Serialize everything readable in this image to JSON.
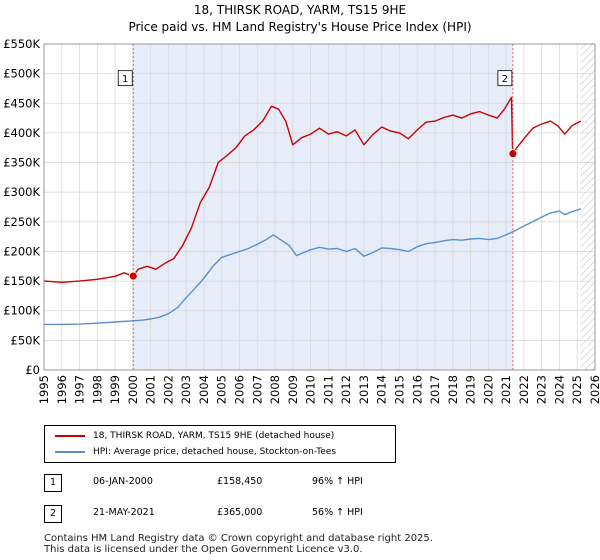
{
  "title_line1": "18, THIRSK ROAD, YARM, TS15 9HE",
  "title_line2": "Price paid vs. HM Land Registry's House Price Index (HPI)",
  "chart_data": {
    "type": "line",
    "title": "18, THIRSK ROAD, YARM, TS15 9HE — Price paid vs. HM Land Registry's House Price Index (HPI)",
    "xlabel": "",
    "ylabel": "",
    "xlim": [
      1995,
      2026
    ],
    "ylim": [
      0,
      550000
    ],
    "x_ticks": [
      1995,
      1996,
      1997,
      1998,
      1999,
      2000,
      2001,
      2002,
      2003,
      2004,
      2005,
      2006,
      2007,
      2008,
      2009,
      2010,
      2011,
      2012,
      2013,
      2014,
      2015,
      2016,
      2017,
      2018,
      2019,
      2020,
      2021,
      2022,
      2023,
      2024,
      2025,
      2026
    ],
    "y_ticks": [
      0,
      50000,
      100000,
      150000,
      200000,
      250000,
      300000,
      350000,
      400000,
      450000,
      500000,
      550000
    ],
    "y_tick_labels": [
      "£0",
      "£50K",
      "£100K",
      "£150K",
      "£200K",
      "£250K",
      "£300K",
      "£350K",
      "£400K",
      "£450K",
      "£500K",
      "£550K"
    ],
    "grid": true,
    "shaded_region": [
      2000.02,
      2021.38
    ],
    "hatched_from": 2025.2,
    "series": [
      {
        "name": "18, THIRSK ROAD, YARM, TS15 9HE (detached house)",
        "color": "#cc0000",
        "points": [
          [
            1995.0,
            150000
          ],
          [
            1996.0,
            148000
          ],
          [
            1997.0,
            150000
          ],
          [
            1998.0,
            153000
          ],
          [
            1999.0,
            158000
          ],
          [
            1999.5,
            164000
          ],
          [
            2000.02,
            158450
          ],
          [
            2000.3,
            170000
          ],
          [
            2000.8,
            175000
          ],
          [
            2001.3,
            170000
          ],
          [
            2001.8,
            180000
          ],
          [
            2002.3,
            188000
          ],
          [
            2002.8,
            210000
          ],
          [
            2003.3,
            240000
          ],
          [
            2003.8,
            283000
          ],
          [
            2004.3,
            308000
          ],
          [
            2004.8,
            350000
          ],
          [
            2005.3,
            362000
          ],
          [
            2005.8,
            375000
          ],
          [
            2006.3,
            395000
          ],
          [
            2006.8,
            405000
          ],
          [
            2007.3,
            420000
          ],
          [
            2007.8,
            445000
          ],
          [
            2008.2,
            440000
          ],
          [
            2008.6,
            420000
          ],
          [
            2009.0,
            380000
          ],
          [
            2009.5,
            392000
          ],
          [
            2010.0,
            398000
          ],
          [
            2010.5,
            408000
          ],
          [
            2011.0,
            398000
          ],
          [
            2011.5,
            402000
          ],
          [
            2012.0,
            395000
          ],
          [
            2012.5,
            405000
          ],
          [
            2013.0,
            380000
          ],
          [
            2013.5,
            397000
          ],
          [
            2014.0,
            410000
          ],
          [
            2014.5,
            403000
          ],
          [
            2015.0,
            400000
          ],
          [
            2015.5,
            390000
          ],
          [
            2016.0,
            405000
          ],
          [
            2016.5,
            418000
          ],
          [
            2017.0,
            420000
          ],
          [
            2017.5,
            426000
          ],
          [
            2018.0,
            430000
          ],
          [
            2018.5,
            425000
          ],
          [
            2019.0,
            432000
          ],
          [
            2019.5,
            436000
          ],
          [
            2020.0,
            430000
          ],
          [
            2020.5,
            425000
          ],
          [
            2020.9,
            440000
          ],
          [
            2021.3,
            460000
          ],
          [
            2021.33,
            418000
          ],
          [
            2021.36,
            378000
          ],
          [
            2021.38,
            365000
          ],
          [
            2021.6,
            375000
          ],
          [
            2022.0,
            390000
          ],
          [
            2022.5,
            408000
          ],
          [
            2023.0,
            415000
          ],
          [
            2023.5,
            420000
          ],
          [
            2023.9,
            412000
          ],
          [
            2024.3,
            398000
          ],
          [
            2024.7,
            412000
          ],
          [
            2025.2,
            420000
          ]
        ]
      },
      {
        "name": "HPI: Average price, detached house, Stockton-on-Tees",
        "color": "#5b8fc9",
        "points": [
          [
            1995.0,
            77000
          ],
          [
            1996.0,
            77000
          ],
          [
            1997.0,
            77500
          ],
          [
            1998.0,
            79000
          ],
          [
            1999.0,
            81000
          ],
          [
            2000.0,
            83000
          ],
          [
            2000.5,
            84000
          ],
          [
            2001.0,
            86000
          ],
          [
            2001.5,
            89000
          ],
          [
            2002.0,
            95000
          ],
          [
            2002.5,
            105000
          ],
          [
            2003.0,
            122000
          ],
          [
            2003.5,
            138000
          ],
          [
            2004.0,
            155000
          ],
          [
            2004.5,
            175000
          ],
          [
            2005.0,
            190000
          ],
          [
            2005.5,
            195000
          ],
          [
            2006.0,
            200000
          ],
          [
            2006.5,
            205000
          ],
          [
            2007.0,
            212000
          ],
          [
            2007.5,
            220000
          ],
          [
            2007.9,
            228000
          ],
          [
            2008.3,
            220000
          ],
          [
            2008.8,
            210000
          ],
          [
            2009.2,
            193000
          ],
          [
            2009.6,
            198000
          ],
          [
            2010.0,
            203000
          ],
          [
            2010.5,
            207000
          ],
          [
            2011.0,
            204000
          ],
          [
            2011.5,
            205000
          ],
          [
            2012.0,
            200000
          ],
          [
            2012.5,
            205000
          ],
          [
            2013.0,
            192000
          ],
          [
            2013.5,
            198000
          ],
          [
            2014.0,
            206000
          ],
          [
            2014.5,
            205000
          ],
          [
            2015.0,
            203000
          ],
          [
            2015.5,
            200000
          ],
          [
            2016.0,
            208000
          ],
          [
            2016.5,
            213000
          ],
          [
            2017.0,
            215000
          ],
          [
            2017.5,
            218000
          ],
          [
            2018.0,
            220000
          ],
          [
            2018.5,
            219000
          ],
          [
            2019.0,
            221000
          ],
          [
            2019.5,
            222000
          ],
          [
            2020.0,
            220000
          ],
          [
            2020.5,
            222000
          ],
          [
            2021.0,
            228000
          ],
          [
            2021.5,
            235000
          ],
          [
            2022.0,
            243000
          ],
          [
            2022.5,
            250000
          ],
          [
            2023.0,
            258000
          ],
          [
            2023.5,
            265000
          ],
          [
            2024.0,
            268000
          ],
          [
            2024.3,
            262000
          ],
          [
            2024.7,
            267000
          ],
          [
            2025.2,
            272000
          ]
        ]
      }
    ],
    "annotations": [
      {
        "label": "1",
        "x": 2000.02,
        "y": 158450
      },
      {
        "label": "2",
        "x": 2021.38,
        "y": 365000
      }
    ]
  },
  "legend": {
    "items": [
      {
        "label": "18, THIRSK ROAD, YARM, TS15 9HE (detached house)",
        "color": "#cc0000"
      },
      {
        "label": "HPI: Average price, detached house, Stockton-on-Tees",
        "color": "#5b8fc9"
      }
    ]
  },
  "transactions": [
    {
      "num": "1",
      "date": "06-JAN-2000",
      "price": "£158,450",
      "hpi": "96% ↑ HPI"
    },
    {
      "num": "2",
      "date": "21-MAY-2021",
      "price": "£365,000",
      "hpi": "56% ↑ HPI"
    }
  ],
  "footer": {
    "line1": "Contains HM Land Registry data © Crown copyright and database right 2025.",
    "line2": "This data is licensed under the Open Government Licence v3.0."
  }
}
